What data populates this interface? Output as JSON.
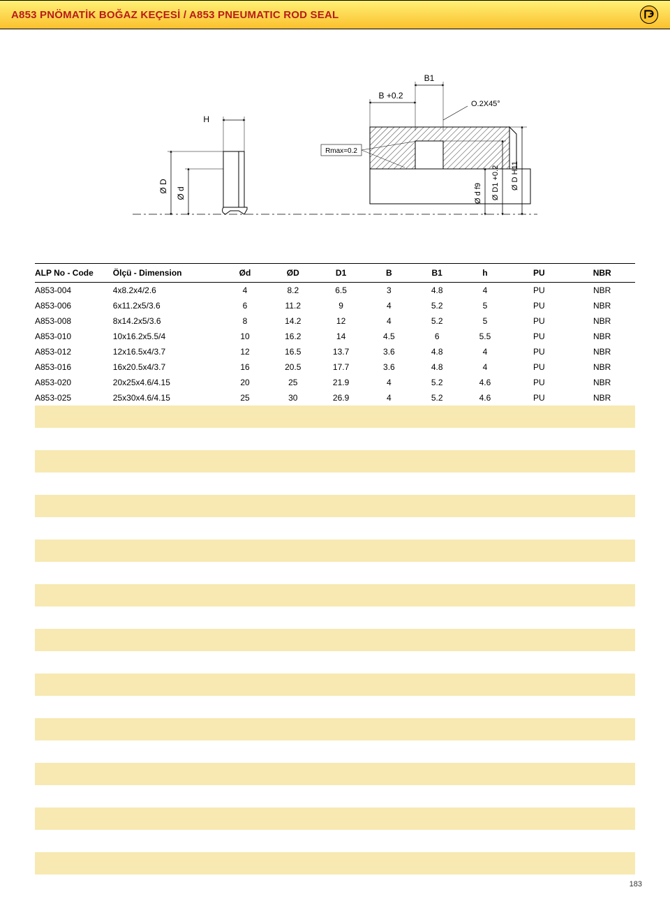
{
  "header": {
    "title": "A853 PNÖMATİK BOĞAZ KEÇESİ / A853 PNEUMATIC ROD SEAL"
  },
  "diagram": {
    "labels": {
      "B1": "B1",
      "B": "B +0.2",
      "H": "H",
      "chamfer": "O.2X45°",
      "Rmax": "Rmax=0.2",
      "OD_cap": "Ø D",
      "Od_low": "Ø d",
      "Od_f9": "Ø d f9",
      "OD1": "Ø D1 +0.2",
      "ODH11": "Ø D H11"
    },
    "colors": {
      "stroke": "#000000",
      "hatch": "#000000",
      "bg": "#ffffff",
      "section_fill": "#ffffff"
    }
  },
  "table": {
    "columns": [
      "ALP No - Code",
      "Ölçü - Dimension",
      "Ød",
      "ØD",
      "D1",
      "B",
      "B1",
      "h",
      "PU",
      "NBR"
    ],
    "rows": [
      [
        "A853-004",
        "4x8.2x4/2.6",
        "4",
        "8.2",
        "6.5",
        "3",
        "4.8",
        "4",
        "PU",
        "NBR"
      ],
      [
        "A853-006",
        "6x11.2x5/3.6",
        "6",
        "11.2",
        "9",
        "4",
        "5.2",
        "5",
        "PU",
        "NBR"
      ],
      [
        "A853-008",
        "8x14.2x5/3.6",
        "8",
        "14.2",
        "12",
        "4",
        "5.2",
        "5",
        "PU",
        "NBR"
      ],
      [
        "A853-010",
        "10x16.2x5.5/4",
        "10",
        "16.2",
        "14",
        "4.5",
        "6",
        "5.5",
        "PU",
        "NBR"
      ],
      [
        "A853-012",
        "12x16.5x4/3.7",
        "12",
        "16.5",
        "13.7",
        "3.6",
        "4.8",
        "4",
        "PU",
        "NBR"
      ],
      [
        "A853-016",
        "16x20.5x4/3.7",
        "16",
        "20.5",
        "17.7",
        "3.6",
        "4.8",
        "4",
        "PU",
        "NBR"
      ],
      [
        "A853-020",
        "20x25x4.6/4.15",
        "20",
        "25",
        "21.9",
        "4",
        "5.2",
        "4.6",
        "PU",
        "NBR"
      ],
      [
        "A853-025",
        "25x30x4.6/4.15",
        "25",
        "30",
        "26.9",
        "4",
        "5.2",
        "4.6",
        "PU",
        "NBR"
      ]
    ],
    "empty_row_count": 22,
    "colors": {
      "stripe_odd": "#f7e9b1",
      "stripe_even": "#ffffff",
      "border": "#000000"
    },
    "col_widths_pct": [
      13,
      18,
      8,
      8,
      8,
      8,
      8,
      8,
      10,
      11
    ]
  },
  "page_number": "183"
}
